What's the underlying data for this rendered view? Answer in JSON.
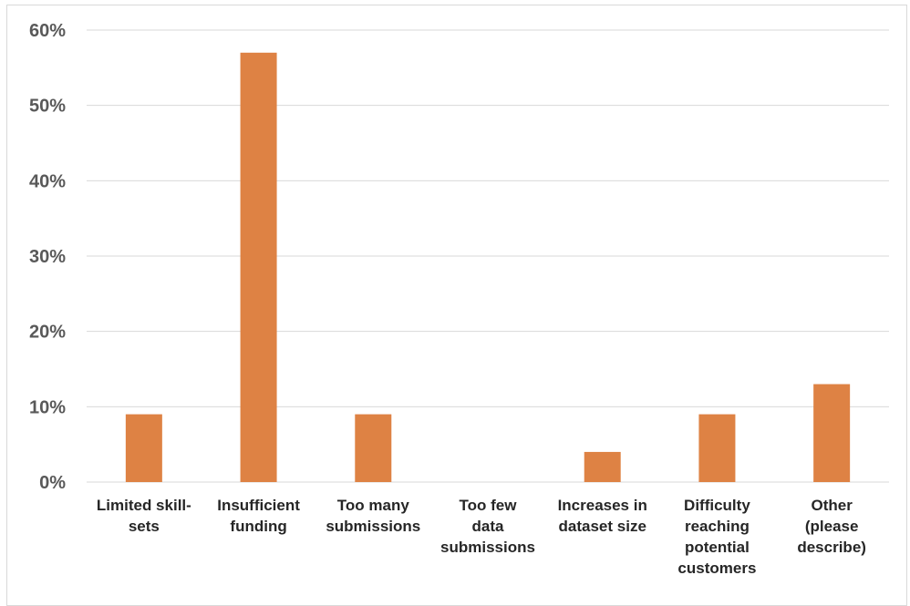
{
  "chart_data": {
    "type": "bar",
    "categories": [
      [
        "Limited skill-",
        "sets"
      ],
      [
        "Insufficient",
        "funding"
      ],
      [
        "Too many",
        "submissions"
      ],
      [
        "Too few",
        "data",
        "submissions"
      ],
      [
        "Increases in",
        "dataset size"
      ],
      [
        "Difficulty",
        "reaching",
        "potential",
        "customers"
      ],
      [
        "Other",
        "(please",
        "describe)"
      ]
    ],
    "values": [
      9,
      57,
      9,
      0,
      4,
      9,
      13
    ],
    "ylim": [
      0,
      60
    ],
    "yticks": [
      0,
      10,
      20,
      30,
      40,
      50,
      60
    ],
    "ytick_labels": [
      "0%",
      "10%",
      "20%",
      "30%",
      "40%",
      "50%",
      "60%"
    ],
    "gridlines": true,
    "bar_color": "#DE8244",
    "grid_color": "#d9d9d9",
    "title": "",
    "xlabel": "",
    "ylabel": ""
  }
}
